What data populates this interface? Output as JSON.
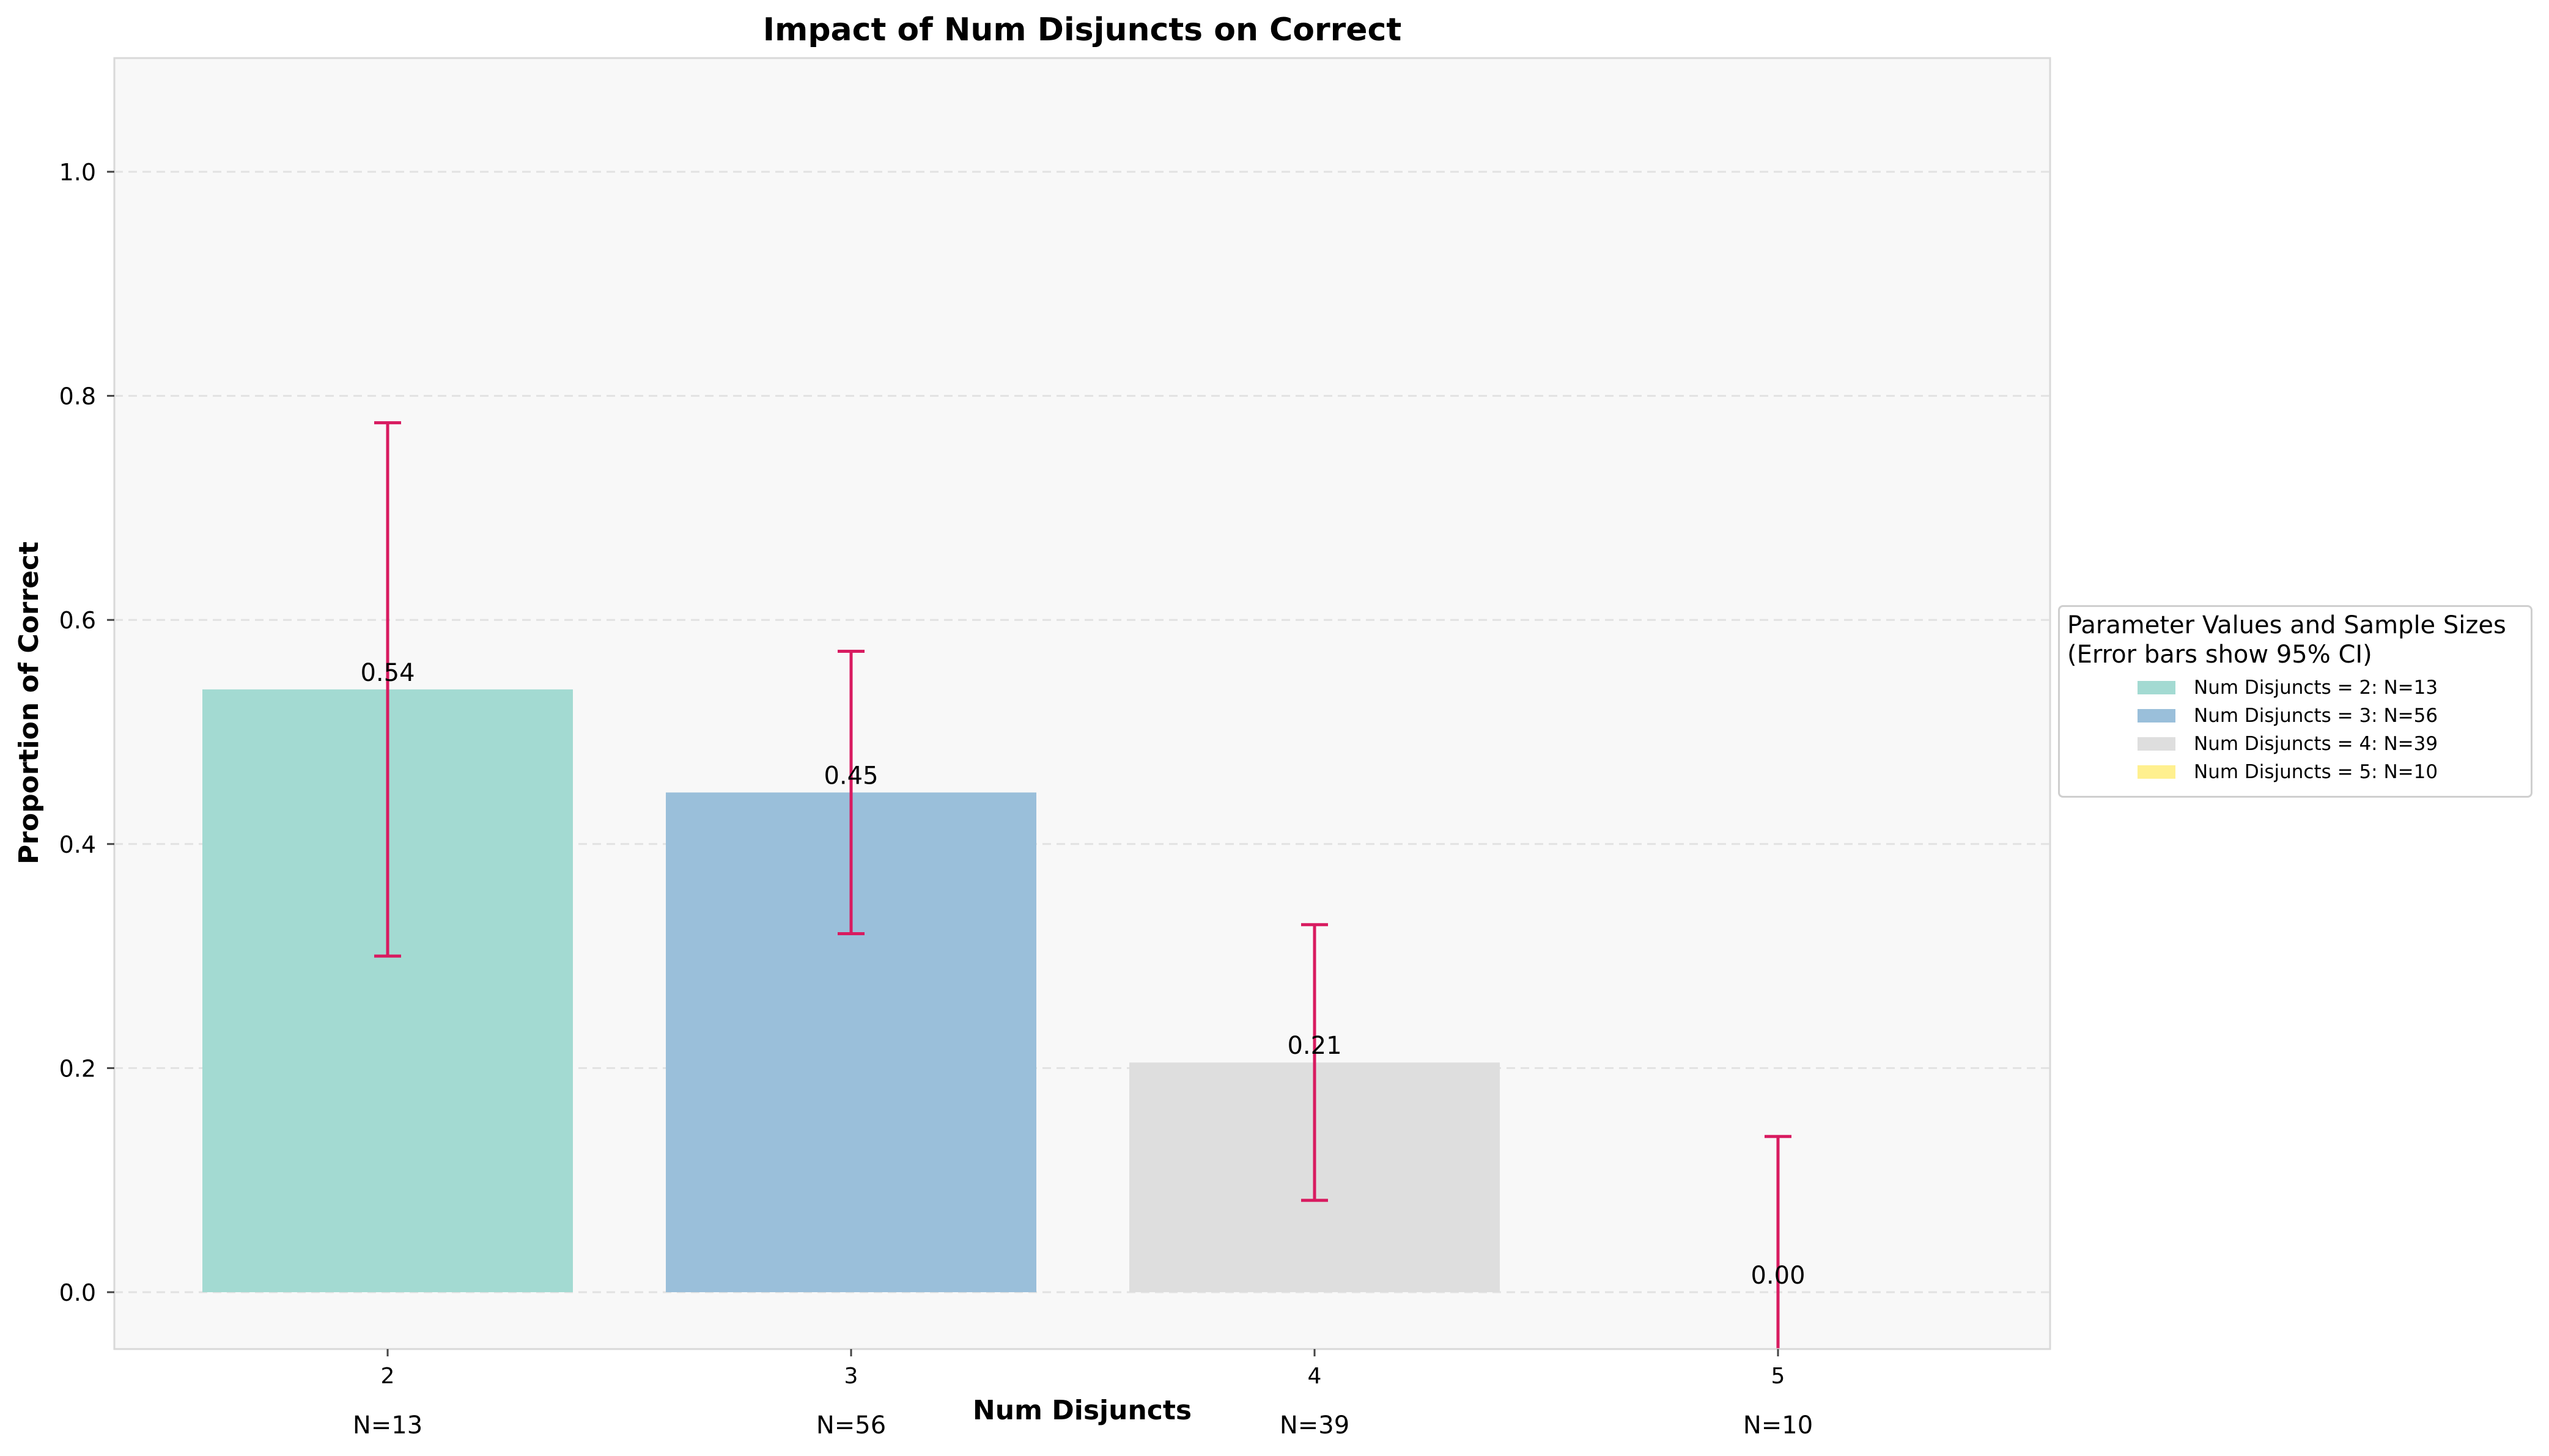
{
  "chart_data": {
    "type": "bar",
    "title": "Impact of Num Disjuncts on Correct",
    "xlabel": "Num Disjuncts",
    "ylabel": "Proportion of Correct",
    "categories": [
      "2",
      "3",
      "4",
      "5"
    ],
    "values": [
      0.538,
      0.446,
      0.205,
      0.0
    ],
    "value_labels": [
      "0.54",
      "0.45",
      "0.21",
      "0.00"
    ],
    "ci_lower": [
      0.3,
      0.32,
      0.082,
      -0.06
    ],
    "ci_upper": [
      0.776,
      0.572,
      0.328,
      0.139
    ],
    "sample_labels": [
      "N=13",
      "N=56",
      "N=39",
      "N=10"
    ],
    "bar_colors": [
      "#a3dad2",
      "#9abfda",
      "#dedede",
      "#fff08f"
    ],
    "error_color": "#d81b60",
    "ylim": [
      -0.05,
      1.1
    ],
    "yticks": [
      0.0,
      0.2,
      0.4,
      0.6,
      0.8,
      1.0
    ],
    "ytick_labels": [
      "0.0",
      "0.2",
      "0.4",
      "0.6",
      "0.8",
      "1.0"
    ],
    "grid": "y-dashed",
    "legend": {
      "placement": "right",
      "title_line1": "Parameter Values and Sample Sizes",
      "title_line2": "(Error bars show 95% CI)",
      "entries": [
        "Num Disjuncts = 2: N=13",
        "Num Disjuncts = 3: N=56",
        "Num Disjuncts = 4: N=39",
        "Num Disjuncts = 5: N=10"
      ]
    }
  }
}
